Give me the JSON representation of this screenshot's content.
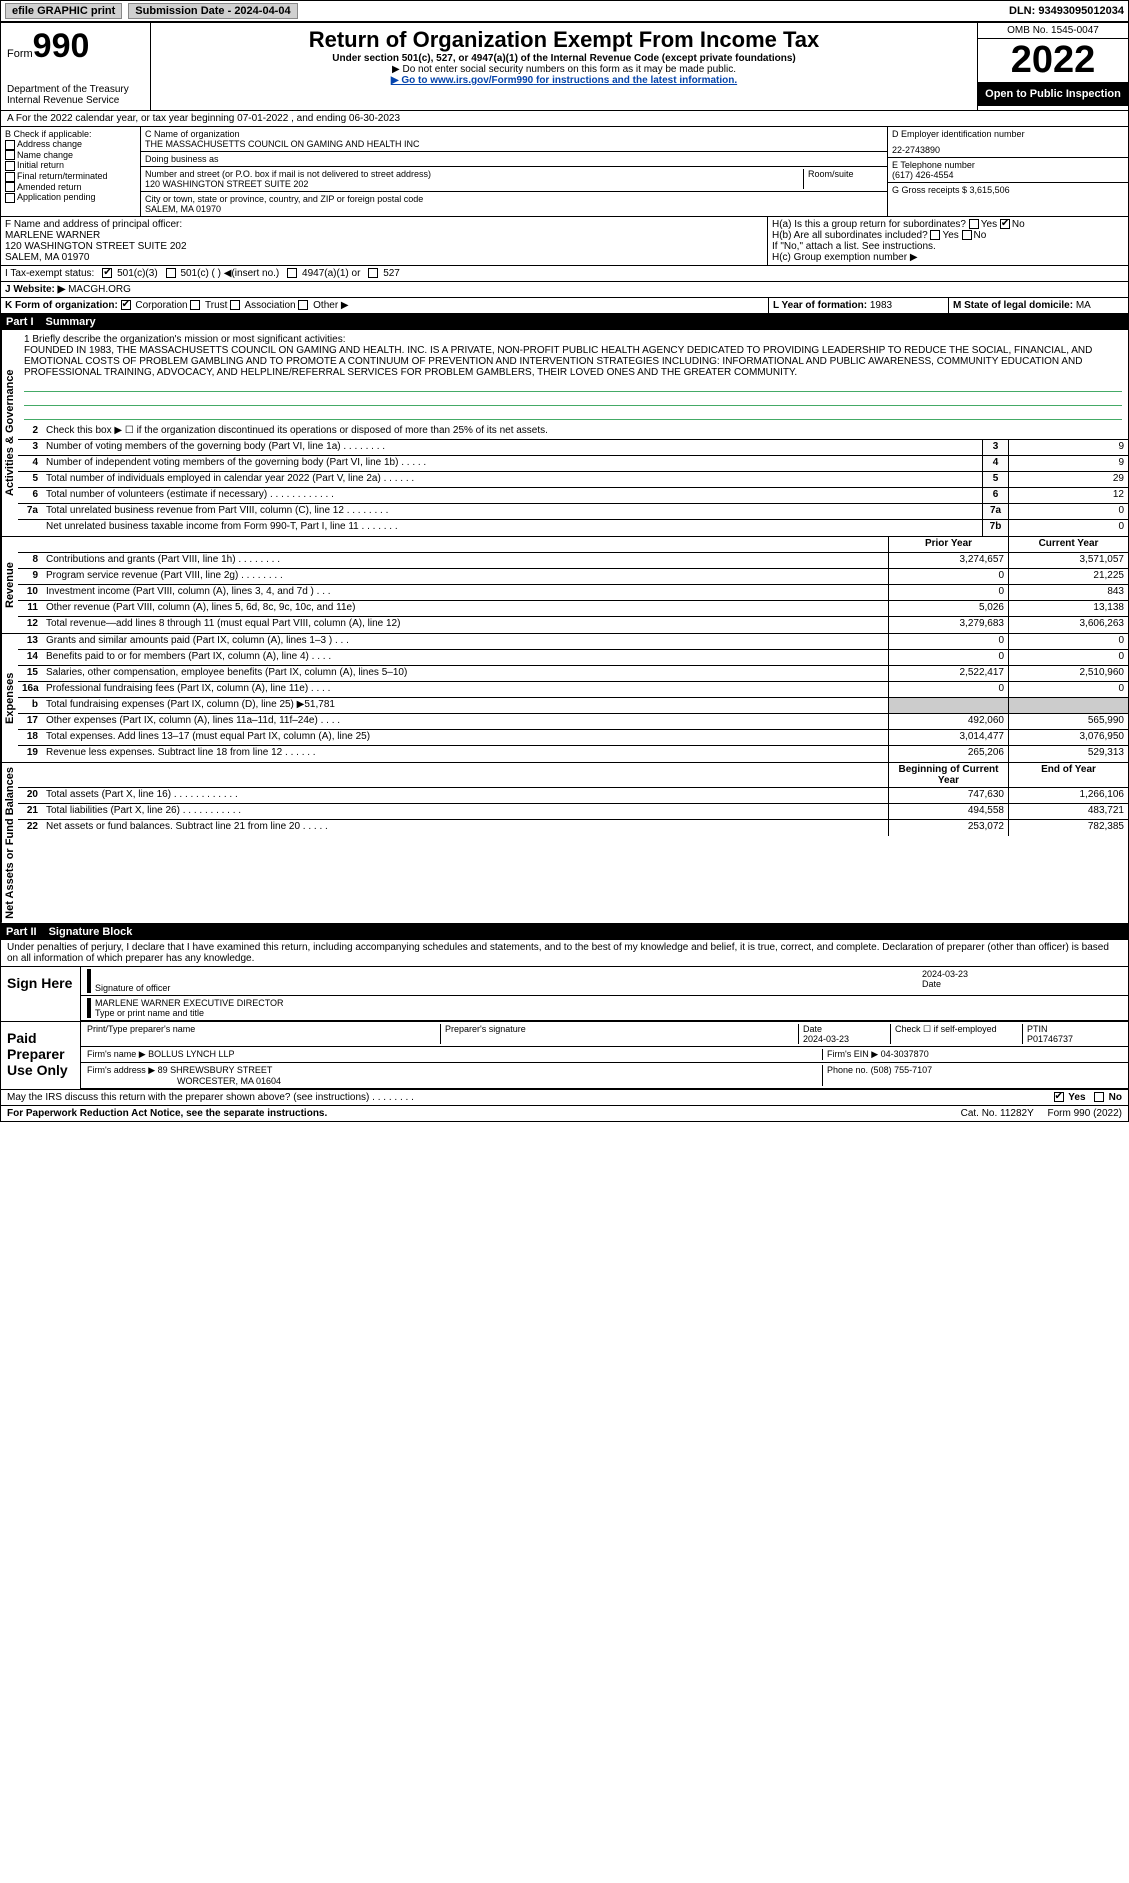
{
  "topbar": {
    "efile": "efile GRAPHIC print",
    "subdate_lbl": "Submission Date - 2024-04-04",
    "dln": "DLN: 93493095012034"
  },
  "header": {
    "form_prefix": "Form",
    "form_no": "990",
    "dept": "Department of the Treasury\nInternal Revenue Service",
    "title": "Return of Organization Exempt From Income Tax",
    "sub": "Under section 501(c), 527, or 4947(a)(1) of the Internal Revenue Code (except private foundations)",
    "note": "▶ Do not enter social security numbers on this form as it may be made public.",
    "link_pre": "▶ Go to ",
    "link": "www.irs.gov/Form990",
    "link_post": " for instructions and the latest information.",
    "omb": "OMB No. 1545-0047",
    "year": "2022",
    "open": "Open to Public Inspection"
  },
  "lineA": "A For the 2022 calendar year, or tax year beginning 07-01-2022  , and ending 06-30-2023",
  "boxB": {
    "title": "B Check if applicable:",
    "items": [
      "Address change",
      "Name change",
      "Initial return",
      "Final return/terminated",
      "Amended return",
      "Application pending"
    ]
  },
  "boxC": {
    "name_lbl": "C Name of organization",
    "name": "THE MASSACHUSETTS COUNCIL ON GAMING AND HEALTH INC",
    "dba_lbl": "Doing business as",
    "dba": "",
    "addr_lbl": "Number and street (or P.O. box if mail is not delivered to street address)",
    "addr": "120 WASHINGTON STREET SUITE 202",
    "room_lbl": "Room/suite",
    "city_lbl": "City or town, state or province, country, and ZIP or foreign postal code",
    "city": "SALEM, MA  01970"
  },
  "boxD": {
    "lbl": "D Employer identification number",
    "val": "22-2743890"
  },
  "boxE": {
    "lbl": "E Telephone number",
    "val": "(617) 426-4554"
  },
  "boxG": {
    "lbl": "G Gross receipts $",
    "val": "3,615,506"
  },
  "boxF": {
    "lbl": "F  Name and address of principal officer:",
    "name": "MARLENE WARNER",
    "addr": "120 WASHINGTON STREET SUITE 202",
    "city": "SALEM, MA  01970"
  },
  "boxH": {
    "a": "H(a)  Is this a group return for subordinates?",
    "b": "H(b)  Are all subordinates included?",
    "note": "If \"No,\" attach a list. See instructions.",
    "c": "H(c)  Group exemption number ▶",
    "yes": "Yes",
    "no": "No"
  },
  "boxI": {
    "lbl": "I   Tax-exempt status:",
    "o1": "501(c)(3)",
    "o2": "501(c) (  ) ◀(insert no.)",
    "o3": "4947(a)(1) or",
    "o4": "527"
  },
  "boxJ": {
    "lbl": "J   Website: ▶",
    "val": "MACGH.ORG"
  },
  "boxK": {
    "lbl": "K Form of organization:",
    "o1": "Corporation",
    "o2": "Trust",
    "o3": "Association",
    "o4": "Other ▶"
  },
  "boxL": {
    "lbl": "L Year of formation:",
    "val": "1983"
  },
  "boxM": {
    "lbl": "M State of legal domicile:",
    "val": "MA"
  },
  "part1": {
    "lbl": "Part I",
    "title": "Summary"
  },
  "mission": {
    "lead": "1   Briefly describe the organization's mission or most significant activities:",
    "text": "FOUNDED IN 1983, THE MASSACHUSETTS COUNCIL ON GAMING AND HEALTH. INC. IS A PRIVATE, NON-PROFIT PUBLIC HEALTH AGENCY DEDICATED TO PROVIDING LEADERSHIP TO REDUCE THE SOCIAL, FINANCIAL, AND EMOTIONAL COSTS OF PROBLEM GAMBLING AND TO PROMOTE A CONTINUUM OF PREVENTION AND INTERVENTION STRATEGIES INCLUDING: INFORMATIONAL AND PUBLIC AWARENESS, COMMUNITY EDUCATION AND PROFESSIONAL TRAINING, ADVOCACY, AND HELPLINE/REFERRAL SERVICES FOR PROBLEM GAMBLERS, THEIR LOVED ONES AND THE GREATER COMMUNITY."
  },
  "gov": {
    "l2": "Check this box ▶ ☐ if the organization discontinued its operations or disposed of more than 25% of its net assets.",
    "rows": [
      {
        "n": "3",
        "d": "Number of voting members of the governing body (Part VI, line 1a)  .    .    .    .    .    .    .    .",
        "tag": "3",
        "v": "9"
      },
      {
        "n": "4",
        "d": "Number of independent voting members of the governing body (Part VI, line 1b)  .    .    .    .    .",
        "tag": "4",
        "v": "9"
      },
      {
        "n": "5",
        "d": "Total number of individuals employed in calendar year 2022 (Part V, line 2a)  .    .    .    .    .    .",
        "tag": "5",
        "v": "29"
      },
      {
        "n": "6",
        "d": "Total number of volunteers (estimate if necessary)  .    .    .    .    .    .    .    .    .    .    .    .",
        "tag": "6",
        "v": "12"
      },
      {
        "n": "7a",
        "d": "Total unrelated business revenue from Part VIII, column (C), line 12  .    .    .    .    .    .    .    .",
        "tag": "7a",
        "v": "0"
      },
      {
        "n": "",
        "d": "Net unrelated business taxable income from Form 990-T, Part I, line 11  .    .    .    .    .    .    .",
        "tag": "7b",
        "v": "0"
      }
    ]
  },
  "colhdr": {
    "prior": "Prior Year",
    "curr": "Current Year"
  },
  "rev": [
    {
      "n": "8",
      "d": "Contributions and grants (Part VIII, line 1h)  .    .    .    .    .    .    .    .",
      "p": "3,274,657",
      "c": "3,571,057"
    },
    {
      "n": "9",
      "d": "Program service revenue (Part VIII, line 2g)  .    .    .    .    .    .    .    .",
      "p": "0",
      "c": "21,225"
    },
    {
      "n": "10",
      "d": "Investment income (Part VIII, column (A), lines 3, 4, and 7d )  .    .    .",
      "p": "0",
      "c": "843"
    },
    {
      "n": "11",
      "d": "Other revenue (Part VIII, column (A), lines 5, 6d, 8c, 9c, 10c, and 11e)",
      "p": "5,026",
      "c": "13,138"
    },
    {
      "n": "12",
      "d": "Total revenue—add lines 8 through 11 (must equal Part VIII, column (A), line 12)",
      "p": "3,279,683",
      "c": "3,606,263"
    }
  ],
  "exp": [
    {
      "n": "13",
      "d": "Grants and similar amounts paid (Part IX, column (A), lines 1–3 )  .    .    .",
      "p": "0",
      "c": "0"
    },
    {
      "n": "14",
      "d": "Benefits paid to or for members (Part IX, column (A), line 4)  .    .    .    .",
      "p": "0",
      "c": "0"
    },
    {
      "n": "15",
      "d": "Salaries, other compensation, employee benefits (Part IX, column (A), lines 5–10)",
      "p": "2,522,417",
      "c": "2,510,960"
    },
    {
      "n": "16a",
      "d": "Professional fundraising fees (Part IX, column (A), line 11e)  .    .    .    .",
      "p": "0",
      "c": "0"
    },
    {
      "n": "b",
      "d": "Total fundraising expenses (Part IX, column (D), line 25) ▶51,781",
      "p": "",
      "c": "",
      "grey": true
    },
    {
      "n": "17",
      "d": "Other expenses (Part IX, column (A), lines 11a–11d, 11f–24e)  .    .    .    .",
      "p": "492,060",
      "c": "565,990"
    },
    {
      "n": "18",
      "d": "Total expenses. Add lines 13–17 (must equal Part IX, column (A), line 25)",
      "p": "3,014,477",
      "c": "3,076,950"
    },
    {
      "n": "19",
      "d": "Revenue less expenses. Subtract line 18 from line 12  .    .    .    .    .    .",
      "p": "265,206",
      "c": "529,313"
    }
  ],
  "nethdr": {
    "beg": "Beginning of Current Year",
    "end": "End of Year"
  },
  "net": [
    {
      "n": "20",
      "d": "Total assets (Part X, line 16)  .    .    .    .    .    .    .    .    .    .    .    .",
      "p": "747,630",
      "c": "1,266,106"
    },
    {
      "n": "21",
      "d": "Total liabilities (Part X, line 26)  .    .    .    .    .    .    .    .    .    .    .",
      "p": "494,558",
      "c": "483,721"
    },
    {
      "n": "22",
      "d": "Net assets or fund balances. Subtract line 21 from line 20  .    .    .    .    .",
      "p": "253,072",
      "c": "782,385"
    }
  ],
  "part2": {
    "lbl": "Part II",
    "title": "Signature Block"
  },
  "sigtext": "Under penalties of perjury, I declare that I have examined this return, including accompanying schedules and statements, and to the best of my knowledge and belief, it is true, correct, and complete. Declaration of preparer (other than officer) is based on all information of which preparer has any knowledge.",
  "sign": {
    "here": "Sign Here",
    "sig_lbl": "Signature of officer",
    "date_lbl": "Date",
    "date": "2024-03-23",
    "name": "MARLENE WARNER  EXECUTIVE DIRECTOR",
    "name_lbl": "Type or print name and title"
  },
  "paid": {
    "here": "Paid Preparer Use Only",
    "h1": "Print/Type preparer's name",
    "h2": "Preparer's signature",
    "h3": "Date",
    "h3v": "2024-03-23",
    "h4": "Check ☐ if self-employed",
    "h5": "PTIN",
    "h5v": "P01746737",
    "firm_lbl": "Firm's name    ▶",
    "firm": "BOLLUS LYNCH LLP",
    "ein_lbl": "Firm's EIN ▶",
    "ein": "04-3037870",
    "addr_lbl": "Firm's address ▶",
    "addr": "89 SHREWSBURY STREET",
    "addr2": "WORCESTER, MA  01604",
    "phone_lbl": "Phone no.",
    "phone": "(508) 755-7107"
  },
  "foot": {
    "q": "May the IRS discuss this return with the preparer shown above? (see instructions)  .    .    .    .    .    .    .    .",
    "yes": "Yes",
    "no": "No",
    "pra": "For Paperwork Reduction Act Notice, see the separate instructions.",
    "cat": "Cat. No. 11282Y",
    "form": "Form 990 (2022)"
  },
  "vlabels": {
    "gov": "Activities & Governance",
    "rev": "Revenue",
    "exp": "Expenses",
    "net": "Net Assets or Fund Balances"
  }
}
